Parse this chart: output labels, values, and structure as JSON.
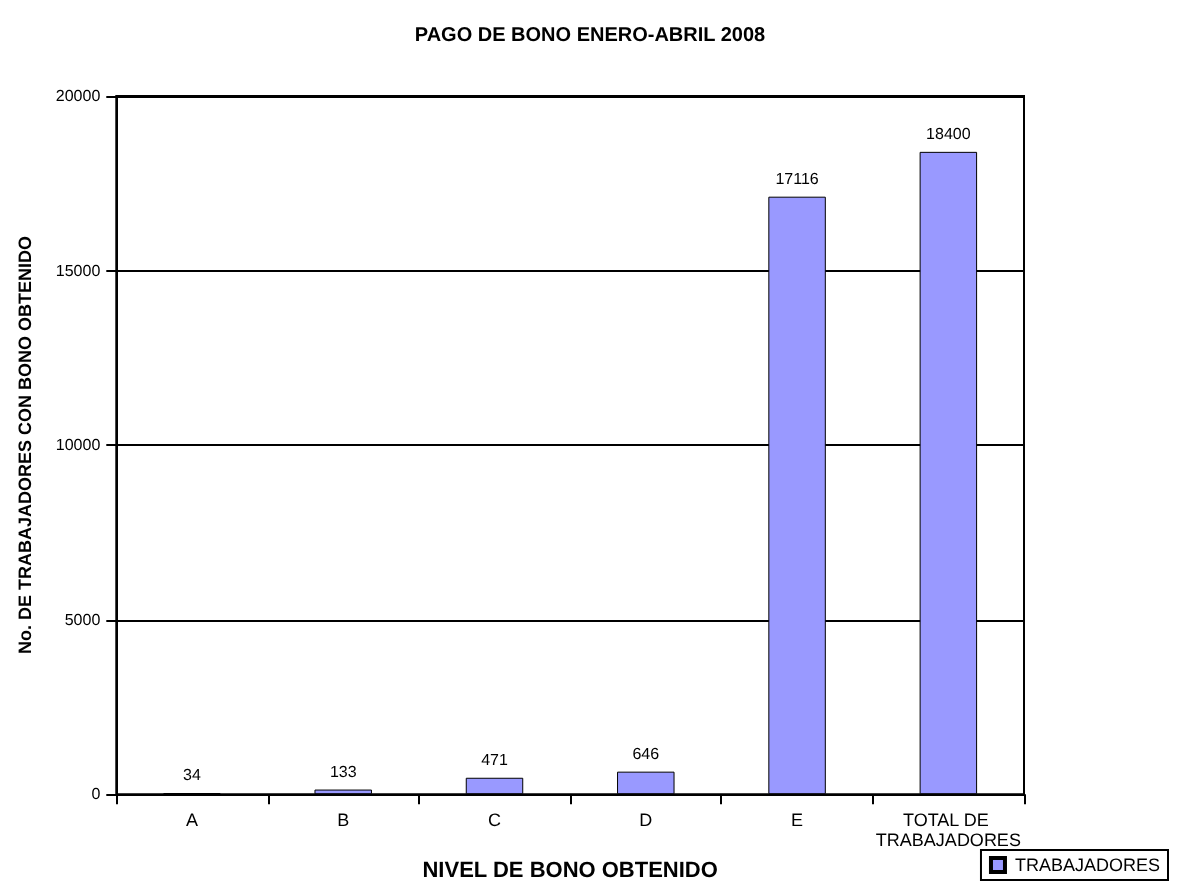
{
  "chart_data": {
    "type": "bar",
    "title": "PAGO DE BONO ENERO-ABRIL 2008",
    "xlabel": "NIVEL DE BONO OBTENIDO",
    "ylabel": "No. DE TRABAJADORES CON BONO OBTENIDO",
    "categories": [
      "A",
      "B",
      "C",
      "D",
      "E",
      "TOTAL DE TRABAJADORES"
    ],
    "series": [
      {
        "name": "TRABAJADORES",
        "color": "#9999ff",
        "values": [
          34,
          133,
          471,
          646,
          17116,
          18400
        ]
      }
    ],
    "ylim": [
      0,
      20000
    ],
    "yticks": [
      0,
      5000,
      10000,
      15000,
      20000
    ],
    "grid": "y",
    "legend": "bottom right",
    "data_labels": true
  }
}
